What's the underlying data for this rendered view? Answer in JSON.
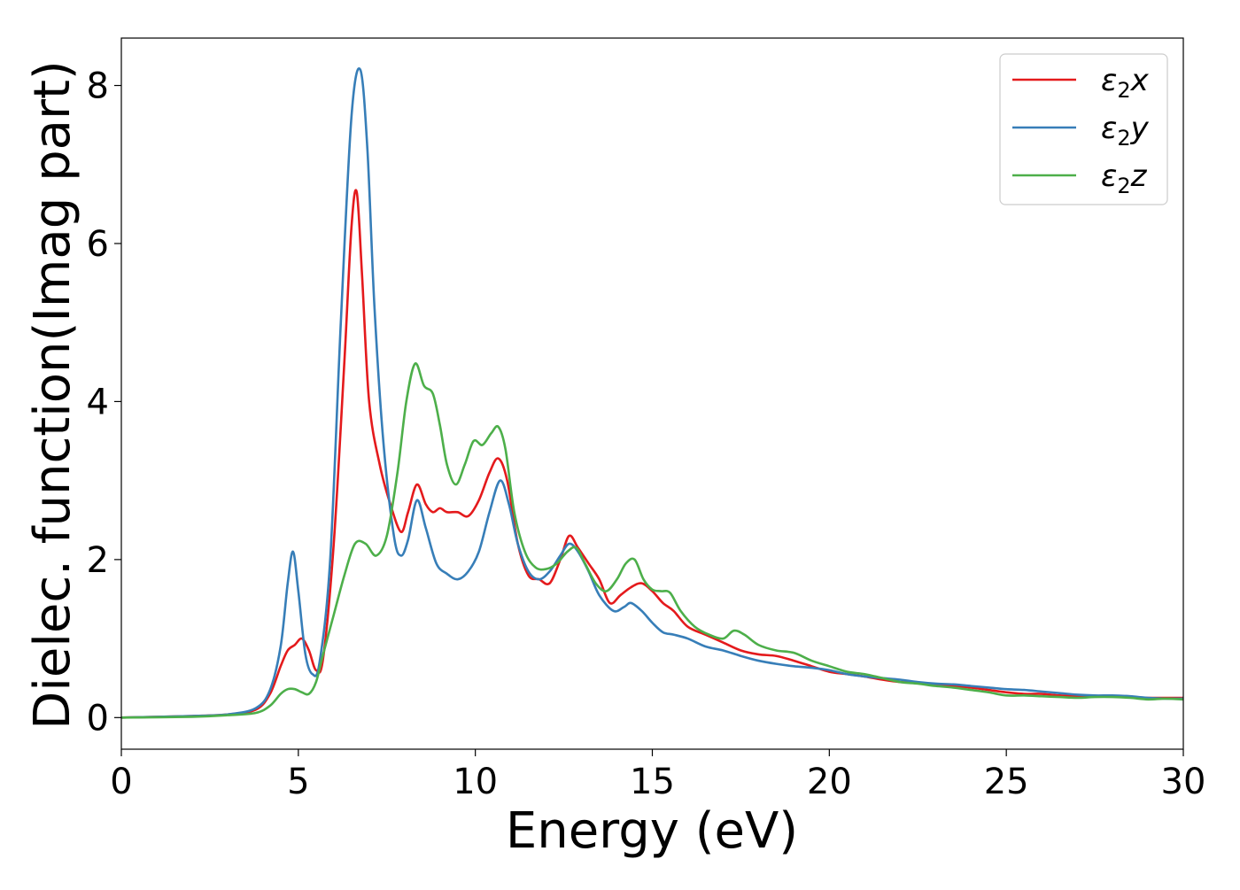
{
  "chart_data": {
    "type": "line",
    "xlabel": "Energy (eV)",
    "ylabel": "Dielec. function(Imag part)",
    "xlim": [
      0,
      30
    ],
    "ylim": [
      -0.4,
      8.6
    ],
    "xticks": [
      0,
      5,
      10,
      15,
      20,
      25,
      30
    ],
    "yticks": [
      0,
      2,
      4,
      6,
      8
    ],
    "xtick_labels": [
      "0",
      "5",
      "10",
      "15",
      "20",
      "25",
      "30"
    ],
    "ytick_labels": [
      "0",
      "2",
      "4",
      "6",
      "8"
    ],
    "grid": false,
    "legend_position": "top-right",
    "series": [
      {
        "name": "ε2x",
        "label_base": "ε",
        "label_sub": "2",
        "label_var": "x",
        "color": "#e41a1c",
        "x": [
          0,
          2,
          3,
          3.8,
          4.2,
          4.5,
          4.7,
          4.9,
          5.1,
          5.3,
          5.5,
          5.7,
          6.0,
          6.3,
          6.5,
          6.65,
          6.8,
          7.0,
          7.3,
          7.6,
          7.9,
          8.1,
          8.35,
          8.6,
          8.8,
          9.0,
          9.2,
          9.5,
          9.8,
          10.1,
          10.4,
          10.65,
          10.9,
          11.2,
          11.5,
          11.8,
          12.1,
          12.4,
          12.65,
          12.9,
          13.2,
          13.5,
          13.8,
          14.1,
          14.4,
          14.7,
          15.0,
          15.3,
          15.6,
          16.0,
          16.5,
          17.0,
          17.5,
          18.0,
          18.5,
          19.0,
          19.5,
          20.0,
          20.5,
          21.0,
          21.5,
          22.0,
          22.5,
          23.0,
          23.5,
          24.0,
          24.5,
          25.0,
          25.5,
          26.0,
          26.5,
          27.0,
          27.5,
          28.0,
          28.5,
          29.0,
          29.5,
          30.0
        ],
        "values": [
          0,
          0.02,
          0.04,
          0.1,
          0.3,
          0.65,
          0.85,
          0.92,
          1.0,
          0.85,
          0.6,
          0.75,
          2.2,
          4.5,
          6.2,
          6.65,
          5.6,
          4.0,
          3.2,
          2.7,
          2.35,
          2.6,
          2.95,
          2.7,
          2.6,
          2.65,
          2.6,
          2.6,
          2.55,
          2.75,
          3.1,
          3.28,
          3.0,
          2.2,
          1.8,
          1.75,
          1.7,
          2.0,
          2.3,
          2.15,
          1.95,
          1.75,
          1.45,
          1.55,
          1.65,
          1.7,
          1.6,
          1.45,
          1.35,
          1.15,
          1.05,
          0.95,
          0.85,
          0.8,
          0.78,
          0.72,
          0.65,
          0.58,
          0.55,
          0.52,
          0.48,
          0.45,
          0.44,
          0.42,
          0.4,
          0.38,
          0.35,
          0.32,
          0.3,
          0.3,
          0.28,
          0.27,
          0.27,
          0.27,
          0.26,
          0.25,
          0.25,
          0.25
        ]
      },
      {
        "name": "ε2y",
        "label_base": "ε",
        "label_sub": "2",
        "label_var": "y",
        "color": "#377eb8",
        "x": [
          0,
          2,
          3,
          3.8,
          4.2,
          4.5,
          4.7,
          4.85,
          5.0,
          5.2,
          5.4,
          5.6,
          5.9,
          6.2,
          6.5,
          6.75,
          6.95,
          7.15,
          7.4,
          7.7,
          7.9,
          8.1,
          8.35,
          8.6,
          8.9,
          9.2,
          9.5,
          9.8,
          10.1,
          10.4,
          10.7,
          10.95,
          11.2,
          11.5,
          11.8,
          12.1,
          12.4,
          12.65,
          12.9,
          13.2,
          13.5,
          13.9,
          14.2,
          14.4,
          14.7,
          15.0,
          15.3,
          15.6,
          16.0,
          16.5,
          17.0,
          17.5,
          18.0,
          18.5,
          19.0,
          19.5,
          20.0,
          20.5,
          21.0,
          21.5,
          22.0,
          22.5,
          23.0,
          23.5,
          24.0,
          24.5,
          25.0,
          25.5,
          26.0,
          26.5,
          27.0,
          27.5,
          28.0,
          28.5,
          29.0,
          29.5,
          30.0
        ],
        "values": [
          0,
          0.02,
          0.04,
          0.12,
          0.35,
          0.9,
          1.7,
          2.1,
          1.6,
          0.8,
          0.55,
          0.7,
          2.0,
          5.0,
          7.6,
          8.2,
          7.2,
          5.2,
          3.5,
          2.3,
          2.05,
          2.25,
          2.75,
          2.4,
          1.95,
          1.82,
          1.75,
          1.85,
          2.1,
          2.6,
          3.0,
          2.7,
          2.2,
          1.85,
          1.75,
          1.85,
          2.05,
          2.2,
          2.1,
          1.85,
          1.55,
          1.35,
          1.4,
          1.45,
          1.35,
          1.2,
          1.08,
          1.05,
          1.0,
          0.9,
          0.85,
          0.78,
          0.72,
          0.68,
          0.65,
          0.63,
          0.6,
          0.55,
          0.52,
          0.5,
          0.48,
          0.45,
          0.43,
          0.42,
          0.4,
          0.38,
          0.36,
          0.35,
          0.33,
          0.31,
          0.29,
          0.28,
          0.28,
          0.27,
          0.25,
          0.24,
          0.24
        ]
      },
      {
        "name": "ε2z",
        "label_base": "ε",
        "label_sub": "2",
        "label_var": "z",
        "color": "#4daf4a",
        "x": [
          0,
          2,
          3,
          3.8,
          4.2,
          4.5,
          4.7,
          4.9,
          5.1,
          5.3,
          5.5,
          5.7,
          6.0,
          6.3,
          6.6,
          6.9,
          7.2,
          7.5,
          7.8,
          8.05,
          8.3,
          8.55,
          8.8,
          9.0,
          9.2,
          9.45,
          9.7,
          9.95,
          10.2,
          10.45,
          10.65,
          10.85,
          11.1,
          11.4,
          11.7,
          12.0,
          12.3,
          12.6,
          12.85,
          13.1,
          13.4,
          13.7,
          14.0,
          14.25,
          14.5,
          14.75,
          15.0,
          15.25,
          15.5,
          15.8,
          16.2,
          16.6,
          17.0,
          17.3,
          17.6,
          18.0,
          18.5,
          19.0,
          19.5,
          20.0,
          20.5,
          21.0,
          21.5,
          22.0,
          22.5,
          23.0,
          23.5,
          24.0,
          24.5,
          25.0,
          25.5,
          26.0,
          26.5,
          27.0,
          27.5,
          28.0,
          28.5,
          29.0,
          29.5,
          30.0
        ],
        "values": [
          0,
          0.01,
          0.03,
          0.06,
          0.15,
          0.3,
          0.36,
          0.36,
          0.32,
          0.3,
          0.45,
          0.8,
          1.3,
          1.8,
          2.2,
          2.2,
          2.05,
          2.3,
          3.1,
          4.0,
          4.48,
          4.2,
          4.1,
          3.7,
          3.2,
          2.95,
          3.2,
          3.5,
          3.45,
          3.6,
          3.68,
          3.4,
          2.6,
          2.1,
          1.9,
          1.88,
          1.95,
          2.1,
          2.15,
          1.95,
          1.7,
          1.6,
          1.75,
          1.95,
          2.0,
          1.75,
          1.62,
          1.6,
          1.58,
          1.35,
          1.15,
          1.05,
          1.0,
          1.1,
          1.05,
          0.92,
          0.85,
          0.82,
          0.72,
          0.65,
          0.58,
          0.55,
          0.5,
          0.45,
          0.43,
          0.4,
          0.38,
          0.35,
          0.32,
          0.28,
          0.28,
          0.27,
          0.26,
          0.25,
          0.26,
          0.26,
          0.25,
          0.23,
          0.24,
          0.23
        ]
      }
    ]
  }
}
